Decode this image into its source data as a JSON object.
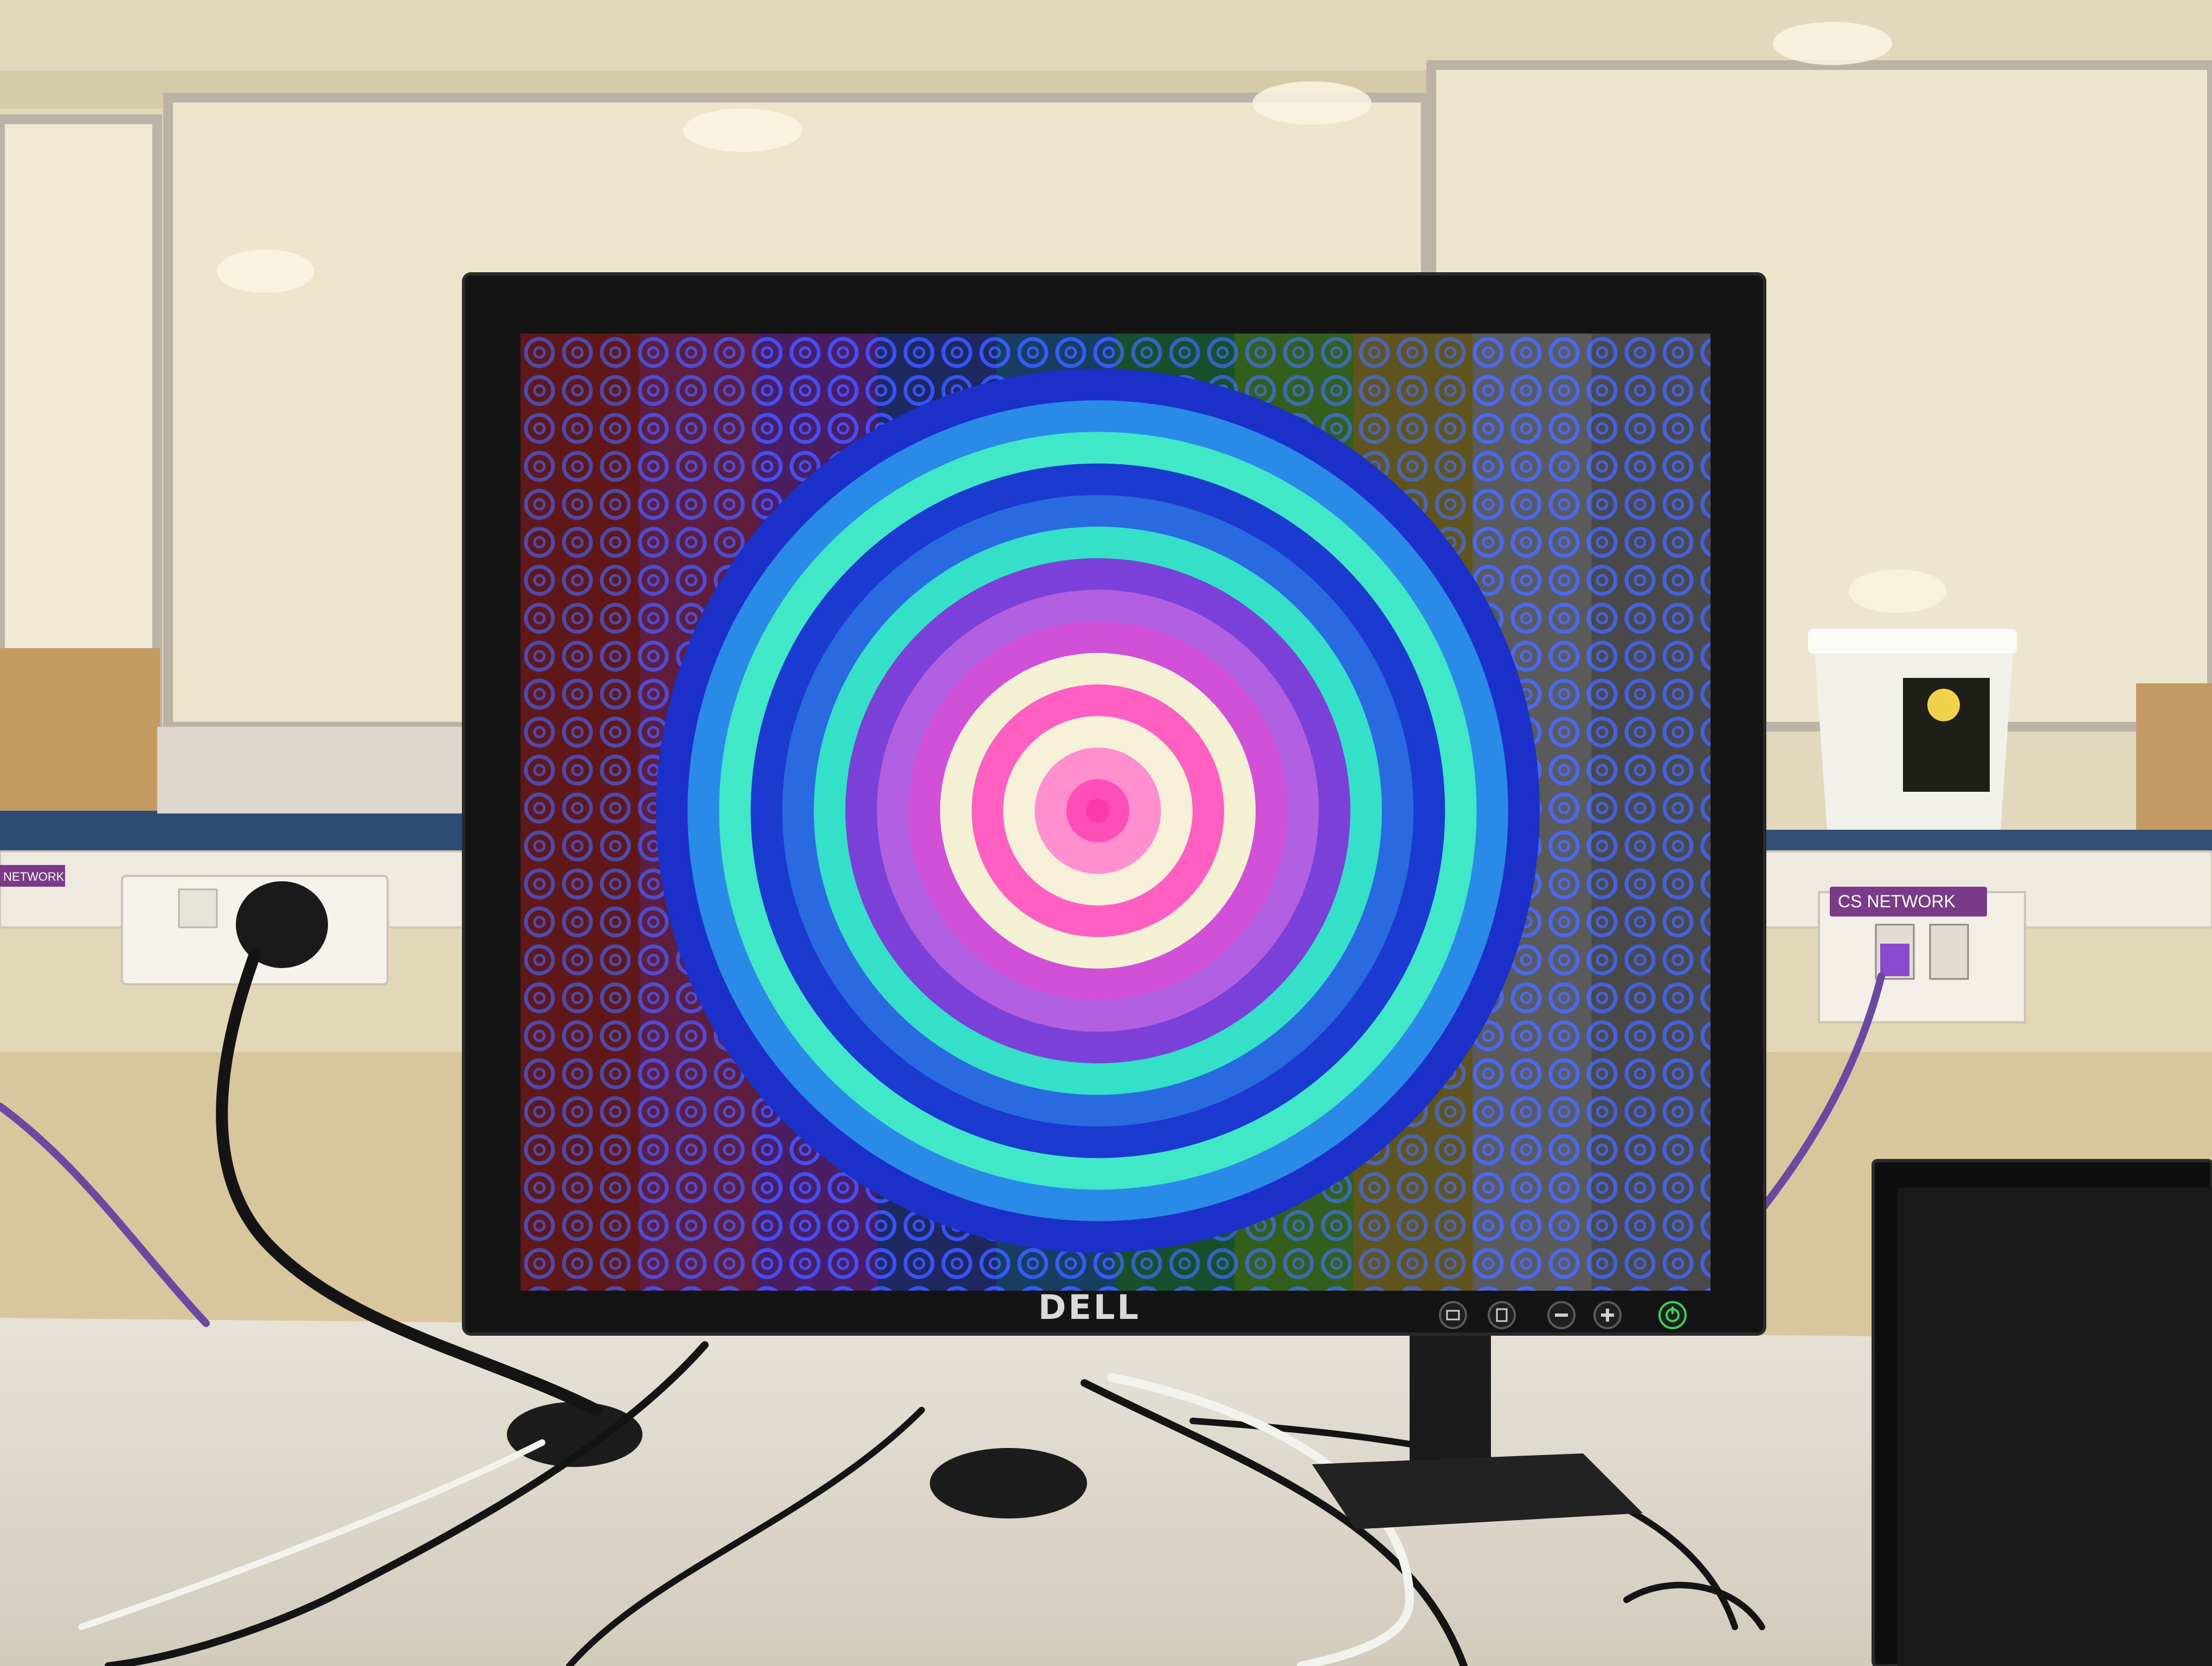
{
  "scene": {
    "wall_color": "#e2d9bd",
    "desk_color": "#e4e0d8"
  },
  "monitor": {
    "brand": "DELL",
    "power_led_color": "#39d353",
    "buttons": [
      {
        "icon": "input-source-icon"
      },
      {
        "icon": "menu-icon"
      },
      {
        "icon": "minus-icon"
      },
      {
        "icon": "plus-icon"
      },
      {
        "icon": "power-icon"
      }
    ]
  },
  "screen": {
    "background": "#0a0a0a",
    "target_ring_colors": [
      "#ff4fb6",
      "#ff8fcf",
      "#f6f0d8",
      "#ff5fc0",
      "#f4f0d4",
      "#d050d8",
      "#b060e0",
      "#7a40d8",
      "#34e0c8",
      "#2a6ae0",
      "#1a3ad0",
      "#40e8c8",
      "#2a8ae8",
      "#1a30c8"
    ],
    "pattern_palette": [
      "#ff3030",
      "#ff40a0",
      "#c040ff",
      "#4060ff",
      "#30a0ff",
      "#30d070",
      "#80ff40",
      "#ffe040",
      "#f0f0f0",
      "#c0c0c0"
    ]
  },
  "labels": {
    "wall_plate_right": "CS NETWORK",
    "wall_plate_left": "NETWORK"
  }
}
